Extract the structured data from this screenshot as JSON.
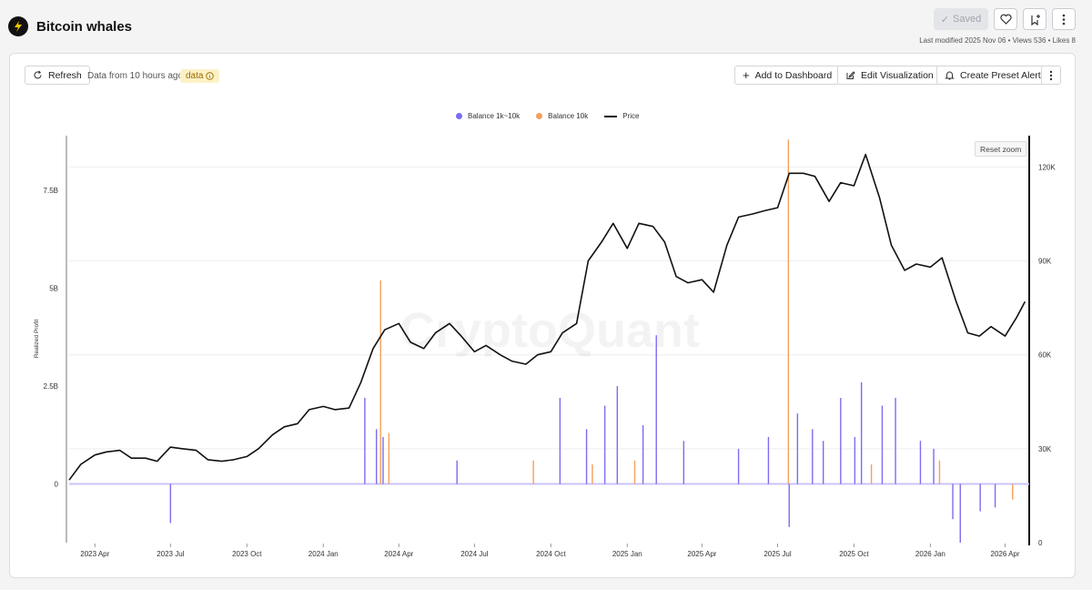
{
  "header": {
    "title": "Bitcoin whales",
    "saved_label": "Saved",
    "meta": "Last modified 2025 Nov 06 • Views 536 • Likes 8"
  },
  "toolbar": {
    "refresh_label": "Refresh",
    "data_age": "Data from 10 hours ago",
    "badge_label": "data",
    "add_label": "Add to Dashboard",
    "edit_label": "Edit Visualization",
    "preset_label": "Create Preset Alert",
    "reset_zoom_label": "Reset zoom"
  },
  "watermark": "CryptoQuant",
  "colors": {
    "balance_1k_10k": "#7b6cf0",
    "balance_10k": "#f5a05a",
    "price": "#111111"
  },
  "chart_data": {
    "type": "bar+line",
    "ylabel": "Realized Profit",
    "legend": [
      "Balance 1k~10k",
      "Balance 10k",
      "Price"
    ],
    "legend_placement": "top-center",
    "x_range": [
      "2023-03-01",
      "2026-04-30"
    ],
    "x_ticks": [
      "2023 Apr",
      "2023 Jul",
      "2023 Oct",
      "2024 Jan",
      "2024 Apr",
      "2024 Jul",
      "2024 Oct",
      "2025 Jan",
      "2025 Apr",
      "2025 Jul",
      "2025 Oct",
      "2026 Jan",
      "2026 Apr"
    ],
    "y_left": {
      "ticks": [
        "0",
        "2.5B",
        "5B",
        "7.5B"
      ],
      "tick_values": [
        0,
        2.5,
        5,
        7.5
      ],
      "unit": "B",
      "range": [
        -1.5,
        8.9
      ]
    },
    "y_right": {
      "ticks": [
        "0",
        "30K",
        "60K",
        "90K",
        "120K"
      ],
      "tick_values": [
        0,
        30000,
        60000,
        90000,
        120000
      ],
      "range": [
        0,
        130000
      ]
    },
    "series": [
      {
        "name": "Price",
        "kind": "line",
        "axis": "right",
        "x": [
          "2023-03-01",
          "2023-03-15",
          "2023-04-01",
          "2023-04-15",
          "2023-05-01",
          "2023-05-15",
          "2023-06-01",
          "2023-06-15",
          "2023-07-01",
          "2023-07-15",
          "2023-08-01",
          "2023-08-15",
          "2023-09-01",
          "2023-09-15",
          "2023-10-01",
          "2023-10-15",
          "2023-11-01",
          "2023-11-15",
          "2023-12-01",
          "2023-12-15",
          "2024-01-01",
          "2024-01-15",
          "2024-02-01",
          "2024-02-15",
          "2024-03-01",
          "2024-03-15",
          "2024-04-01",
          "2024-04-15",
          "2024-05-01",
          "2024-05-15",
          "2024-06-01",
          "2024-06-15",
          "2024-07-01",
          "2024-07-15",
          "2024-08-01",
          "2024-08-15",
          "2024-09-01",
          "2024-09-15",
          "2024-10-01",
          "2024-10-15",
          "2024-11-01",
          "2024-11-15",
          "2024-12-01",
          "2024-12-15",
          "2025-01-01",
          "2025-01-15",
          "2025-02-01",
          "2025-02-15",
          "2025-03-01",
          "2025-03-15",
          "2025-04-01",
          "2025-04-15",
          "2025-05-01",
          "2025-05-15",
          "2025-06-01",
          "2025-06-15",
          "2025-07-01",
          "2025-07-15",
          "2025-08-01",
          "2025-08-15",
          "2025-09-01",
          "2025-09-15",
          "2025-10-01",
          "2025-10-15",
          "2025-11-01",
          "2025-11-15",
          "2025-12-01",
          "2025-12-15",
          "2026-01-01",
          "2026-01-15",
          "2026-02-01",
          "2026-02-15",
          "2026-03-01",
          "2026-03-15",
          "2026-04-01",
          "2026-04-15",
          "2026-04-25"
        ],
        "values": [
          20000,
          25000,
          28000,
          29000,
          29500,
          27000,
          27000,
          26000,
          30500,
          30000,
          29500,
          26500,
          26000,
          26500,
          27500,
          30000,
          34500,
          37000,
          38000,
          42500,
          43500,
          42500,
          43000,
          51000,
          62000,
          68000,
          70000,
          64000,
          62000,
          67000,
          70000,
          66000,
          61000,
          63000,
          60000,
          58000,
          57000,
          60000,
          61000,
          67000,
          70000,
          90000,
          96000,
          102000,
          94000,
          102000,
          101000,
          96000,
          85000,
          83000,
          84000,
          80000,
          95000,
          104000,
          105000,
          106000,
          107000,
          118000,
          118000,
          117000,
          109000,
          115000,
          114000,
          124000,
          110000,
          95000,
          87000,
          89000,
          88000,
          91000,
          77000,
          67000,
          66000,
          69000,
          66000,
          72000,
          77000
        ]
      },
      {
        "name": "Balance 1k~10k",
        "kind": "bar",
        "axis": "left",
        "x": [
          "2023-07-01",
          "2024-02-20",
          "2024-03-05",
          "2024-03-13",
          "2024-06-10",
          "2024-10-12",
          "2024-11-13",
          "2024-12-05",
          "2024-12-20",
          "2025-01-20",
          "2025-02-05",
          "2025-03-10",
          "2025-05-15",
          "2025-06-20",
          "2025-07-15",
          "2025-07-25",
          "2025-08-12",
          "2025-08-25",
          "2025-09-15",
          "2025-10-02",
          "2025-10-10",
          "2025-11-04",
          "2025-11-20",
          "2025-12-20",
          "2026-01-05",
          "2026-01-28",
          "2026-02-06",
          "2026-03-02",
          "2026-03-20"
        ],
        "values": [
          -1.0,
          2.2,
          1.4,
          1.2,
          0.6,
          2.2,
          1.4,
          2.0,
          2.5,
          1.5,
          3.8,
          1.1,
          0.9,
          1.2,
          -1.1,
          1.8,
          1.4,
          1.1,
          2.2,
          1.2,
          2.6,
          2.0,
          2.2,
          1.1,
          0.9,
          -0.9,
          -1.5,
          -0.7,
          -0.6
        ]
      },
      {
        "name": "Balance 10k",
        "kind": "bar",
        "axis": "left",
        "x": [
          "2024-03-10",
          "2024-03-20",
          "2024-09-10",
          "2024-11-20",
          "2025-01-10",
          "2025-07-14",
          "2025-10-22",
          "2026-01-12",
          "2026-04-10"
        ],
        "values": [
          5.2,
          1.3,
          0.6,
          0.5,
          0.6,
          8.8,
          0.5,
          0.6,
          -0.4
        ]
      }
    ]
  }
}
